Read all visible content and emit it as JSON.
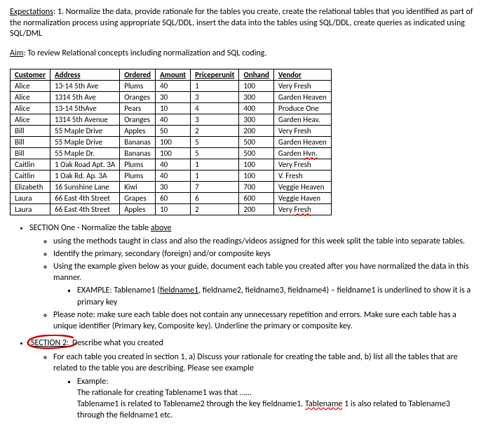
{
  "expectations": {
    "label": "Expectations",
    "text": ": 1. Normalize the data, provide rationale for the tables you create, create the relational tables that you identified as part of the normalization process using appropriate SQL/DDL, insert the data into the tables using SQL/DDL, create queries as indicated using SQL/DML"
  },
  "aim": {
    "label": "Aim",
    "text": ": To review Relational concepts including normalization and SQL coding."
  },
  "table": {
    "columns": [
      "Customer",
      "Address",
      "Ordered",
      "Amount",
      "Priceperunit",
      "Onhand",
      "Vendor"
    ],
    "rows": [
      [
        "Alice",
        "13-14 5th Ave",
        "Plums",
        "40",
        "1",
        "100",
        "Very Fresh"
      ],
      [
        "Alice",
        "1314 5th Ave",
        "Oranges",
        "30",
        "3",
        "300",
        "Garden Heaven"
      ],
      [
        "Alice",
        "13-14 5thAve",
        "Pears",
        "10",
        "4",
        "400",
        "Produce One"
      ],
      [
        "Alice",
        "1314 5th Avenue",
        "Oranges",
        "40",
        "3",
        "300",
        "Garden Heav."
      ],
      [
        "Bill",
        "55 Maple Drive",
        "Apples",
        "50",
        "2",
        "200",
        "Very Fresh"
      ],
      [
        "Bill",
        "55 Maple Drive",
        "Bananas",
        "100",
        "5",
        "500",
        "Garden Heaven"
      ],
      [
        "Bill",
        "55 Maple Dr.",
        "Bananas",
        "100",
        "5",
        "500",
        "Garden Hvn."
      ],
      [
        "Caitlin",
        "1 Oak Road Apt. 3A",
        "Plums",
        "40",
        "1",
        "100",
        "Very Fresh"
      ],
      [
        "Caitlin",
        "1 Oak Rd. Ap. 3A",
        "Plums",
        "40",
        "1",
        "100",
        "V. Fresh"
      ],
      [
        "Elizabeth",
        "16 Sunshine Lane",
        "Kiwi",
        "30",
        "7",
        "700",
        "Veggie Heaven"
      ],
      [
        "Laura",
        "66 East 4th Street",
        "Grapes",
        "60",
        "6",
        "600",
        "Veggie Haven"
      ],
      [
        "Laura",
        "66 East 4th Street",
        "Apples",
        "10",
        "2",
        "200",
        "Very Fresh"
      ]
    ],
    "squiggly_cells": [
      {
        "r": 6,
        "c": 6
      },
      {
        "r": 11,
        "c": 6
      }
    ]
  },
  "section1": {
    "title_prefix": "SECTION One - Normalize the table ",
    "title_underlined": "above",
    "items": [
      "using the methods taught in class and also the readings/videos assigned for this week split the table into separate tables.",
      "Identify the primary, secondary (foreign) and/or composite keys",
      "Using the example given below as your guide, document each table you created after you have normalized the data in this manner."
    ],
    "example_prefix": "EXAMPLE: Tablename1 (",
    "example_underlined": "fieldname1",
    "example_suffix": ", fieldname2, fieldname3, fieldname4) – fieldname1 is underlined to show it is a primary key",
    "note": "Please note: make sure each table does not contain any unnecessary repetition and errors. Make sure each table has a unique identifier (Primary key, Composite key). Underline the primary or composite key."
  },
  "section2": {
    "title": "SECTION 2",
    "title_colon": ":",
    "title_rest": " Describe what you created",
    "body": "For each table you created in section 1, a) Discuss your rationale for creating the table and, b) list all the tables that are related to the table you are describing. Please see example",
    "example_label": "Example:",
    "rationale": "The rationale for creating Tablename1 was that ……",
    "rel_prefix": "Tablename1 is related to Tablename2 through the key fieldname1. ",
    "rel_word": "Tablename",
    "rel_suffix": " 1 is also related to Tablename3 through the fieldname1 etc."
  }
}
